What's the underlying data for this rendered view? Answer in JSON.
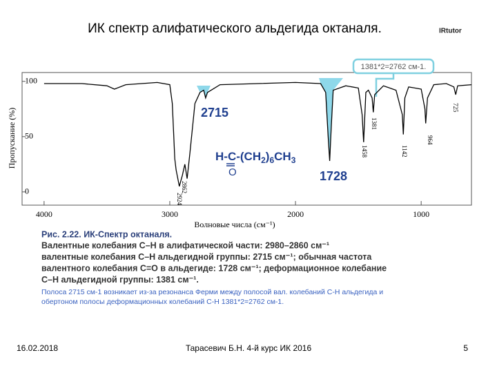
{
  "title": "ИК спектр алифатического альдегида октаналя.",
  "logo": "IRtutor",
  "chart_data": {
    "type": "line",
    "x_label": "Волновые числа (см⁻¹)",
    "y_label": "Пропускание (%)",
    "xlim": [
      4175,
      600
    ],
    "xticks": [
      4000,
      3000,
      2000,
      1000
    ],
    "ylim": [
      -12,
      108
    ],
    "yticks": [
      0,
      50,
      100
    ],
    "series": [
      {
        "color": "#000000",
        "x": [
          4000,
          3700,
          3500,
          3440,
          3350,
          3100,
          3000,
          2980,
          2960,
          2950,
          2924,
          2900,
          2880,
          2862,
          2840,
          2800,
          2760,
          2730,
          2715,
          2700,
          2600,
          2000,
          1800,
          1760,
          1740,
          1728,
          1715,
          1700,
          1600,
          1500,
          1470,
          1458,
          1440,
          1420,
          1390,
          1381,
          1370,
          1300,
          1200,
          1150,
          1142,
          1130,
          1100,
          1000,
          970,
          964,
          950,
          900,
          800,
          740,
          725,
          710,
          600
        ],
        "values": [
          98,
          98,
          96,
          93,
          97,
          99,
          97,
          80,
          30,
          20,
          5,
          15,
          25,
          12,
          35,
          80,
          90,
          92,
          85,
          90,
          97,
          99,
          98,
          90,
          50,
          28,
          60,
          92,
          96,
          94,
          70,
          45,
          90,
          92,
          85,
          72,
          88,
          96,
          92,
          70,
          52,
          85,
          95,
          93,
          75,
          62,
          85,
          97,
          98,
          95,
          88,
          96,
          97
        ]
      }
    ],
    "annotations": [
      "2862",
      "2924",
      "1458",
      "1381",
      "1142",
      "964",
      "725"
    ],
    "callouts": [
      "2715",
      "1728"
    ],
    "note": "1381*2=2762 см-1.",
    "formula": [
      {
        "text": "H-C-(CH",
        "sub": false
      },
      {
        "text": "2",
        "sub": true
      },
      {
        "text": ")",
        "sub": false
      },
      {
        "text": "6",
        "sub": true
      },
      {
        "text": "CH",
        "sub": false
      },
      {
        "text": "3",
        "sub": true
      }
    ],
    "formula_o": "O"
  },
  "caption": {
    "figure": "Рис. 2.22. ИК-Спектр октаналя.",
    "lines": [
      "Валентные колебания C–H в алифатической части: 2980–2860 см⁻¹",
      "валентные колебания C–H альдегидной группы: 2715 см⁻¹; обычная частота",
      "валентного колебания C=O в альдегиде: 1728 см⁻¹; деформационное колебание",
      "C–H альдегидной группы: 1381 см⁻¹."
    ],
    "note": [
      "Полоса 2715 см-1 возникает из-за резонанса Ферми между полосой вал. колебаний C-H альдегида и",
      "обертоном полосы деформационных колебаний C-H 1381*2=2762 см-1."
    ]
  },
  "footer": {
    "date": "16.02.2018",
    "author": "Тарасевич Б.Н. 4-й курс ИК 2016",
    "page": "5"
  }
}
